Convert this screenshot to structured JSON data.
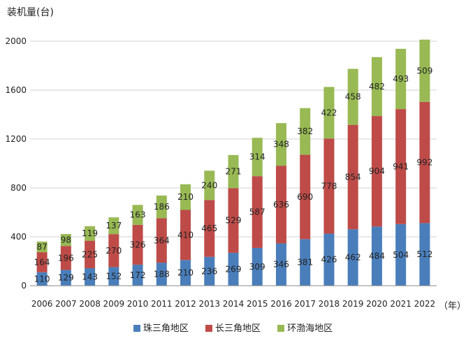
{
  "chart_data": {
    "type": "bar",
    "stacked": true,
    "ylabel": "装机量(台)",
    "xunit": "（年）",
    "categories": [
      "2006",
      "2007",
      "2008",
      "2009",
      "2010",
      "2011",
      "2012",
      "2013",
      "2014",
      "2015",
      "2016",
      "2017",
      "2018",
      "2019",
      "2020",
      "2021",
      "2022"
    ],
    "ylim": [
      0,
      2000
    ],
    "yticks": [
      0,
      400,
      800,
      1200,
      1600,
      2000
    ],
    "grid": true,
    "legend_position": "bottom",
    "series": [
      {
        "name": "珠三角地区",
        "color": "#4a7ebb",
        "values": [
          110,
          129,
          143,
          152,
          172,
          188,
          210,
          236,
          269,
          309,
          346,
          381,
          426,
          462,
          484,
          504,
          512
        ]
      },
      {
        "name": "长三角地区",
        "color": "#be4b48",
        "values": [
          164,
          196,
          225,
          270,
          326,
          364,
          410,
          465,
          529,
          587,
          636,
          690,
          778,
          854,
          904,
          941,
          992
        ]
      },
      {
        "name": "环渤海地区",
        "color": "#98b954",
        "values": [
          87,
          98,
          119,
          137,
          163,
          186,
          210,
          240,
          271,
          314,
          348,
          382,
          422,
          458,
          482,
          493,
          509
        ]
      }
    ]
  }
}
